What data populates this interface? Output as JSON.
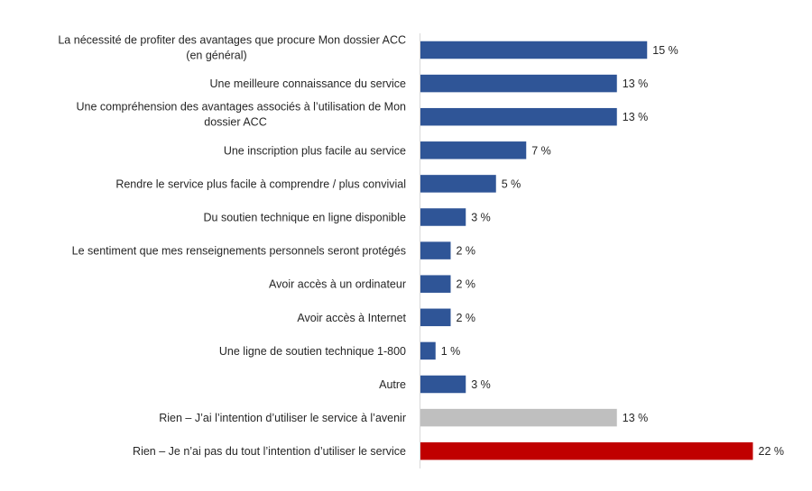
{
  "chart_data": {
    "type": "bar",
    "orientation": "horizontal",
    "title": "",
    "xlabel": "",
    "ylabel": "",
    "xlim": [
      0,
      22
    ],
    "grid": false,
    "legend": "none",
    "value_suffix": " %",
    "categories": [
      "La nécessité de profiter des avantages que procure Mon dossier ACC (en général)",
      "Une meilleure connaissance du service",
      "Une compréhension des avantages associés à l’utilisation de Mon dossier ACC",
      "Une inscription plus facile au service",
      "Rendre le service plus facile à comprendre / plus convivial",
      "Du soutien technique en ligne disponible",
      "Le sentiment que mes renseignements personnels seront protégés",
      "Avoir accès à un ordinateur",
      "Avoir accès à Internet",
      "Une ligne de soutien technique 1-800",
      "Autre",
      "Rien – J’ai l’intention d’utiliser le service à l’avenir",
      "Rien – Je n’ai pas du tout l’intention d’utiliser le service"
    ],
    "category_lines": [
      [
        "La nécessité de profiter des avantages que procure Mon dossier ACC",
        "(en général)"
      ],
      [
        "Une meilleure connaissance du service"
      ],
      [
        "Une compréhension des avantages associés à l’utilisation de Mon",
        "dossier ACC"
      ],
      [
        "Une inscription plus facile au service"
      ],
      [
        "Rendre le service plus facile à comprendre / plus convivial"
      ],
      [
        "Du soutien technique en ligne disponible"
      ],
      [
        "Le sentiment que mes renseignements personnels seront protégés"
      ],
      [
        "Avoir accès à un ordinateur"
      ],
      [
        "Avoir accès à Internet"
      ],
      [
        "Une ligne de soutien technique 1-800"
      ],
      [
        "Autre"
      ],
      [
        "Rien – J’ai l’intention d’utiliser le service à l’avenir"
      ],
      [
        "Rien – Je n’ai pas du tout l’intention d’utiliser le service"
      ]
    ],
    "values": [
      15,
      13,
      13,
      7,
      5,
      3,
      2,
      2,
      2,
      1,
      3,
      13,
      22
    ],
    "data_labels": [
      "15 %",
      "13 %",
      "13 %",
      "7 %",
      "5 %",
      "3 %",
      "2 %",
      "2 %",
      "2 %",
      "1 %",
      "3 %",
      "13 %",
      "22 %"
    ],
    "colors": [
      "#2F5597",
      "#2F5597",
      "#2F5597",
      "#2F5597",
      "#2F5597",
      "#2F5597",
      "#2F5597",
      "#2F5597",
      "#2F5597",
      "#2F5597",
      "#2F5597",
      "#BFBFBF",
      "#C00000"
    ],
    "axis_color": "#D9D9D9"
  }
}
